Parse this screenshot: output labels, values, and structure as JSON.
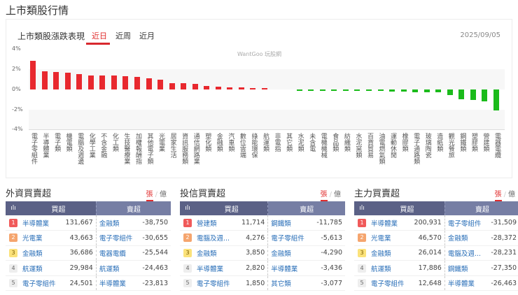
{
  "page": {
    "title": "上市類股行情"
  },
  "chart_panel": {
    "title": "上市類股漲跌表現",
    "tabs": [
      {
        "label": "近日",
        "active": true
      },
      {
        "label": "近周",
        "active": false
      },
      {
        "label": "近月",
        "active": false
      }
    ],
    "date": "2025/09/05",
    "watermark": "WantGoo 玩股網"
  },
  "chart_data": {
    "type": "bar",
    "title": "上市類股漲跌表現",
    "xlabel": "",
    "ylabel": "%",
    "ylim": [
      -4,
      4
    ],
    "yticks": [
      "4%",
      "2%",
      "0%",
      "-2%",
      "-4%"
    ],
    "grid": true,
    "legend": "none",
    "colors": {
      "up": "#e8282e",
      "down": "#1bbb1b"
    },
    "categories": [
      "電子零組件",
      "半導體業",
      "電子類",
      "機電類",
      "電腦及週邊",
      "化學工業",
      "不含金融",
      "化工類",
      "生技醫療業",
      "加權報酬指",
      "其他電子類",
      "光電業",
      "居家生活",
      "資訊服務類",
      "通信網路業",
      "塑化類",
      "金融類",
      "汽車類",
      "數位雲端",
      "綠能環保",
      "航運類",
      "非電指",
      "其它類",
      "水泥類",
      "未含電",
      "電機機械",
      "食品類",
      "紡織類",
      "水泥窯類",
      "百貨貿易",
      "油電燃氣類",
      "運動休閒",
      "橡膠類",
      "電子通路類",
      "玻璃陶瓷",
      "造紙類",
      "觀光餐旅",
      "鋼鐵類",
      "塑膠類",
      "營建類",
      "電器電纜"
    ],
    "values": [
      2.8,
      1.8,
      1.7,
      1.65,
      1.5,
      1.4,
      1.35,
      1.35,
      1.3,
      1.25,
      1.1,
      0.95,
      0.65,
      0.6,
      0.55,
      0.35,
      0.28,
      0.22,
      0.2,
      0.15,
      0.15,
      0.0,
      0.0,
      -0.02,
      -0.08,
      -0.08,
      -0.08,
      -0.1,
      -0.1,
      -0.1,
      -0.12,
      -0.2,
      -0.22,
      -0.25,
      -0.28,
      -0.3,
      -0.55,
      -0.95,
      -1.0,
      -1.2,
      -2.1
    ]
  },
  "panels": [
    {
      "title": "外資買賣超",
      "units": [
        "張",
        "億"
      ],
      "active_unit": "張",
      "headers": {
        "buy": "買超",
        "sell": "賣超"
      },
      "rows": [
        {
          "rank": "1",
          "buy_name": "半導體業",
          "buy_value": "131,667",
          "sell_name": "金融類",
          "sell_value": "-38,750"
        },
        {
          "rank": "2",
          "buy_name": "光電業",
          "buy_value": "43,663",
          "sell_name": "電子零組件",
          "sell_value": "-30,655"
        },
        {
          "rank": "3",
          "buy_name": "金融類",
          "buy_value": "36,686",
          "sell_name": "電器電纜",
          "sell_value": "-25,544"
        },
        {
          "rank": "4",
          "buy_name": "航運類",
          "buy_value": "29,984",
          "sell_name": "航運類",
          "sell_value": "-24,463"
        },
        {
          "rank": "5",
          "buy_name": "電子零組件",
          "buy_value": "24,501",
          "sell_name": "半導體業",
          "sell_value": "-23,813"
        }
      ]
    },
    {
      "title": "投信買賣超",
      "units": [
        "張",
        "億"
      ],
      "active_unit": "張",
      "headers": {
        "buy": "買超",
        "sell": "賣超"
      },
      "rows": [
        {
          "rank": "1",
          "buy_name": "營建類",
          "buy_value": "11,714",
          "sell_name": "鋼鐵類",
          "sell_value": "-11,785"
        },
        {
          "rank": "2",
          "buy_name": "電腦及週...",
          "buy_value": "4,276",
          "sell_name": "電子零組件",
          "sell_value": "-5,613"
        },
        {
          "rank": "3",
          "buy_name": "金融類",
          "buy_value": "3,850",
          "sell_name": "金融類",
          "sell_value": "-4,290"
        },
        {
          "rank": "4",
          "buy_name": "半導體業",
          "buy_value": "2,820",
          "sell_name": "半導體業",
          "sell_value": "-3,436"
        },
        {
          "rank": "5",
          "buy_name": "電子零組件",
          "buy_value": "1,850",
          "sell_name": "其它類",
          "sell_value": "-3,077"
        }
      ]
    },
    {
      "title": "主力買賣超",
      "units": [
        "張",
        "億"
      ],
      "active_unit": "張",
      "headers": {
        "buy": "買超",
        "sell": "賣超"
      },
      "rows": [
        {
          "rank": "1",
          "buy_name": "半導體業",
          "buy_value": "200,931",
          "sell_name": "電子零組件",
          "sell_value": "-31,509"
        },
        {
          "rank": "2",
          "buy_name": "光電業",
          "buy_value": "46,570",
          "sell_name": "金融類",
          "sell_value": "-28,372"
        },
        {
          "rank": "3",
          "buy_name": "金融類",
          "buy_value": "26,014",
          "sell_name": "電腦及週...",
          "sell_value": "-28,231"
        },
        {
          "rank": "4",
          "buy_name": "航運類",
          "buy_value": "17,886",
          "sell_name": "鋼鐵類",
          "sell_value": "-27,350"
        },
        {
          "rank": "5",
          "buy_name": "電子零組件",
          "buy_value": "12,648",
          "sell_name": "半導體業",
          "sell_value": "-26,463"
        }
      ]
    }
  ]
}
